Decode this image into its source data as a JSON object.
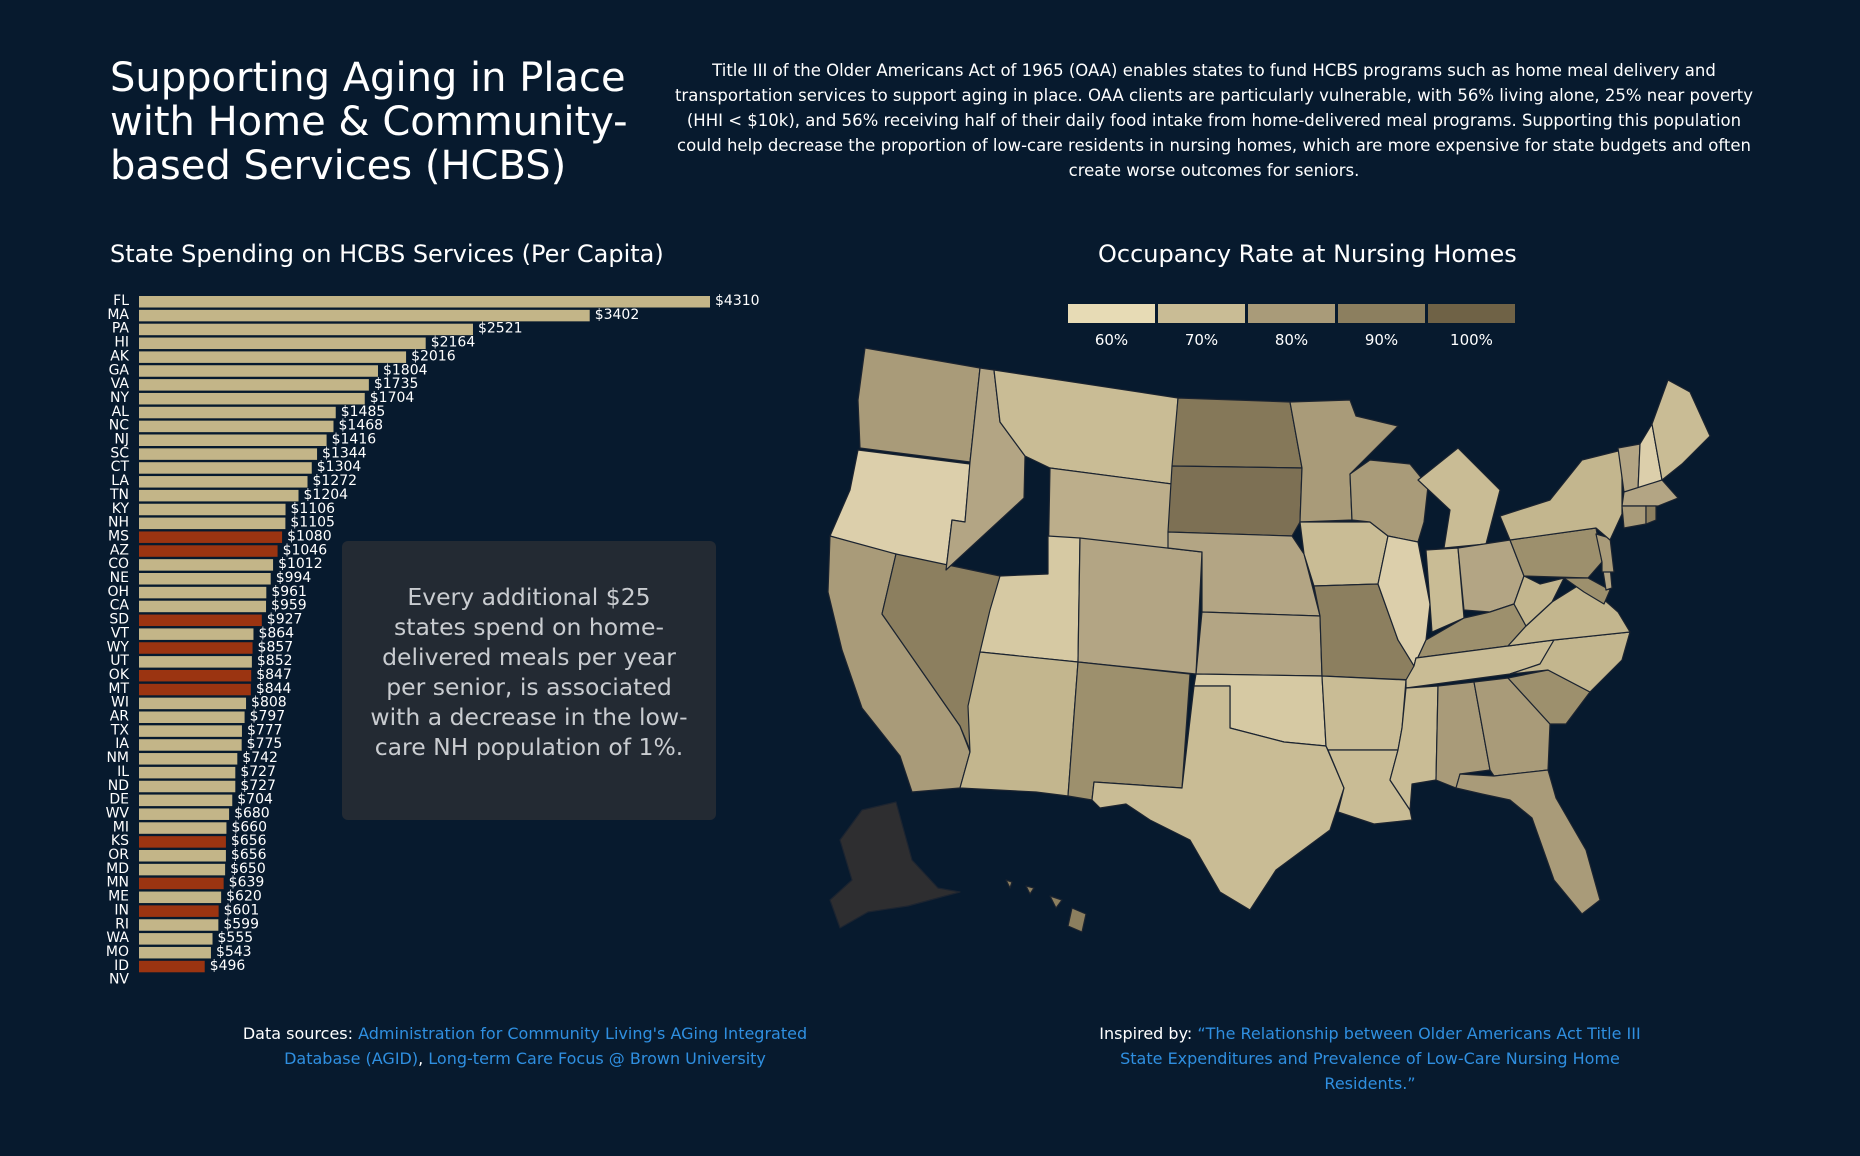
{
  "header": {
    "title": "Supporting Aging in Place with Home & Community-based Services (HCBS)",
    "intro": "Title III of the Older Americans Act of 1965 (OAA) enables states to fund HCBS programs such as home meal delivery and transportation services to support aging in place. OAA clients are particularly vulnerable, with 56% living alone, 25% near poverty (HHI < $10k), and 56% receiving half of their daily food intake from home-delivered meal programs. Supporting this population could help decrease the proportion of low-care residents in nursing homes, which are more expensive for state budgets and often create worse outcomes for seniors."
  },
  "callout": {
    "text": "Every additional $25 states spend on home-delivered meals per year per senior, is associated with a decrease in the low-care NH population of 1%."
  },
  "colors": {
    "background": "#071a2e",
    "bar_default": "#c3b588",
    "bar_highlight": "#9b3411",
    "callout_bg": "#232a33",
    "link": "#2f8fe0",
    "map_no_data": "#2e2e30"
  },
  "chart_data": [
    {
      "type": "bar",
      "orientation": "horizontal",
      "title": "State Spending on HCBS Services (Per Capita)",
      "value_prefix": "$",
      "categories": [
        "FL",
        "MA",
        "PA",
        "HI",
        "AK",
        "GA",
        "VA",
        "NY",
        "AL",
        "NC",
        "NJ",
        "SC",
        "CT",
        "LA",
        "TN",
        "KY",
        "NH",
        "MS",
        "AZ",
        "CO",
        "NE",
        "OH",
        "CA",
        "SD",
        "VT",
        "WY",
        "UT",
        "OK",
        "MT",
        "WI",
        "AR",
        "TX",
        "IA",
        "NM",
        "IL",
        "ND",
        "DE",
        "WV",
        "MI",
        "KS",
        "OR",
        "MD",
        "MN",
        "ME",
        "IN",
        "RI",
        "WA",
        "MO",
        "ID",
        "NV"
      ],
      "values": [
        4310,
        3402,
        2521,
        2164,
        2016,
        1804,
        1735,
        1704,
        1485,
        1468,
        1416,
        1344,
        1304,
        1272,
        1204,
        1106,
        1105,
        1080,
        1046,
        1012,
        994,
        961,
        959,
        927,
        864,
        857,
        852,
        847,
        844,
        808,
        797,
        777,
        775,
        742,
        727,
        727,
        704,
        680,
        660,
        656,
        656,
        650,
        639,
        620,
        601,
        599,
        555,
        543,
        496,
        null
      ],
      "highlighted": [
        "MS",
        "AZ",
        "SD",
        "WY",
        "OK",
        "MT",
        "KS",
        "MN",
        "IN",
        "ID"
      ]
    },
    {
      "type": "choropleth",
      "title": "Occupancy Rate at Nursing Homes",
      "legend": {
        "labels": [
          "60%",
          "70%",
          "80%",
          "90%",
          "100%"
        ],
        "colors": [
          "#e7dbb5",
          "#c9bc95",
          "#a99b79",
          "#8c7f5f",
          "#6f6246"
        ]
      }
    }
  ],
  "footer": {
    "sources_label": "Data sources:",
    "sources_link1": "Administration for Community Living's AGing Integrated Database (AGID)",
    "sources_sep": ",",
    "sources_link2": "Long-term Care Focus @ Brown University",
    "inspired_label": "Inspired by:",
    "inspired_link": "“The Relationship between Older Americans Act Title III State Expenditures and Prevalence of Low-Care Nursing Home Residents.”"
  }
}
